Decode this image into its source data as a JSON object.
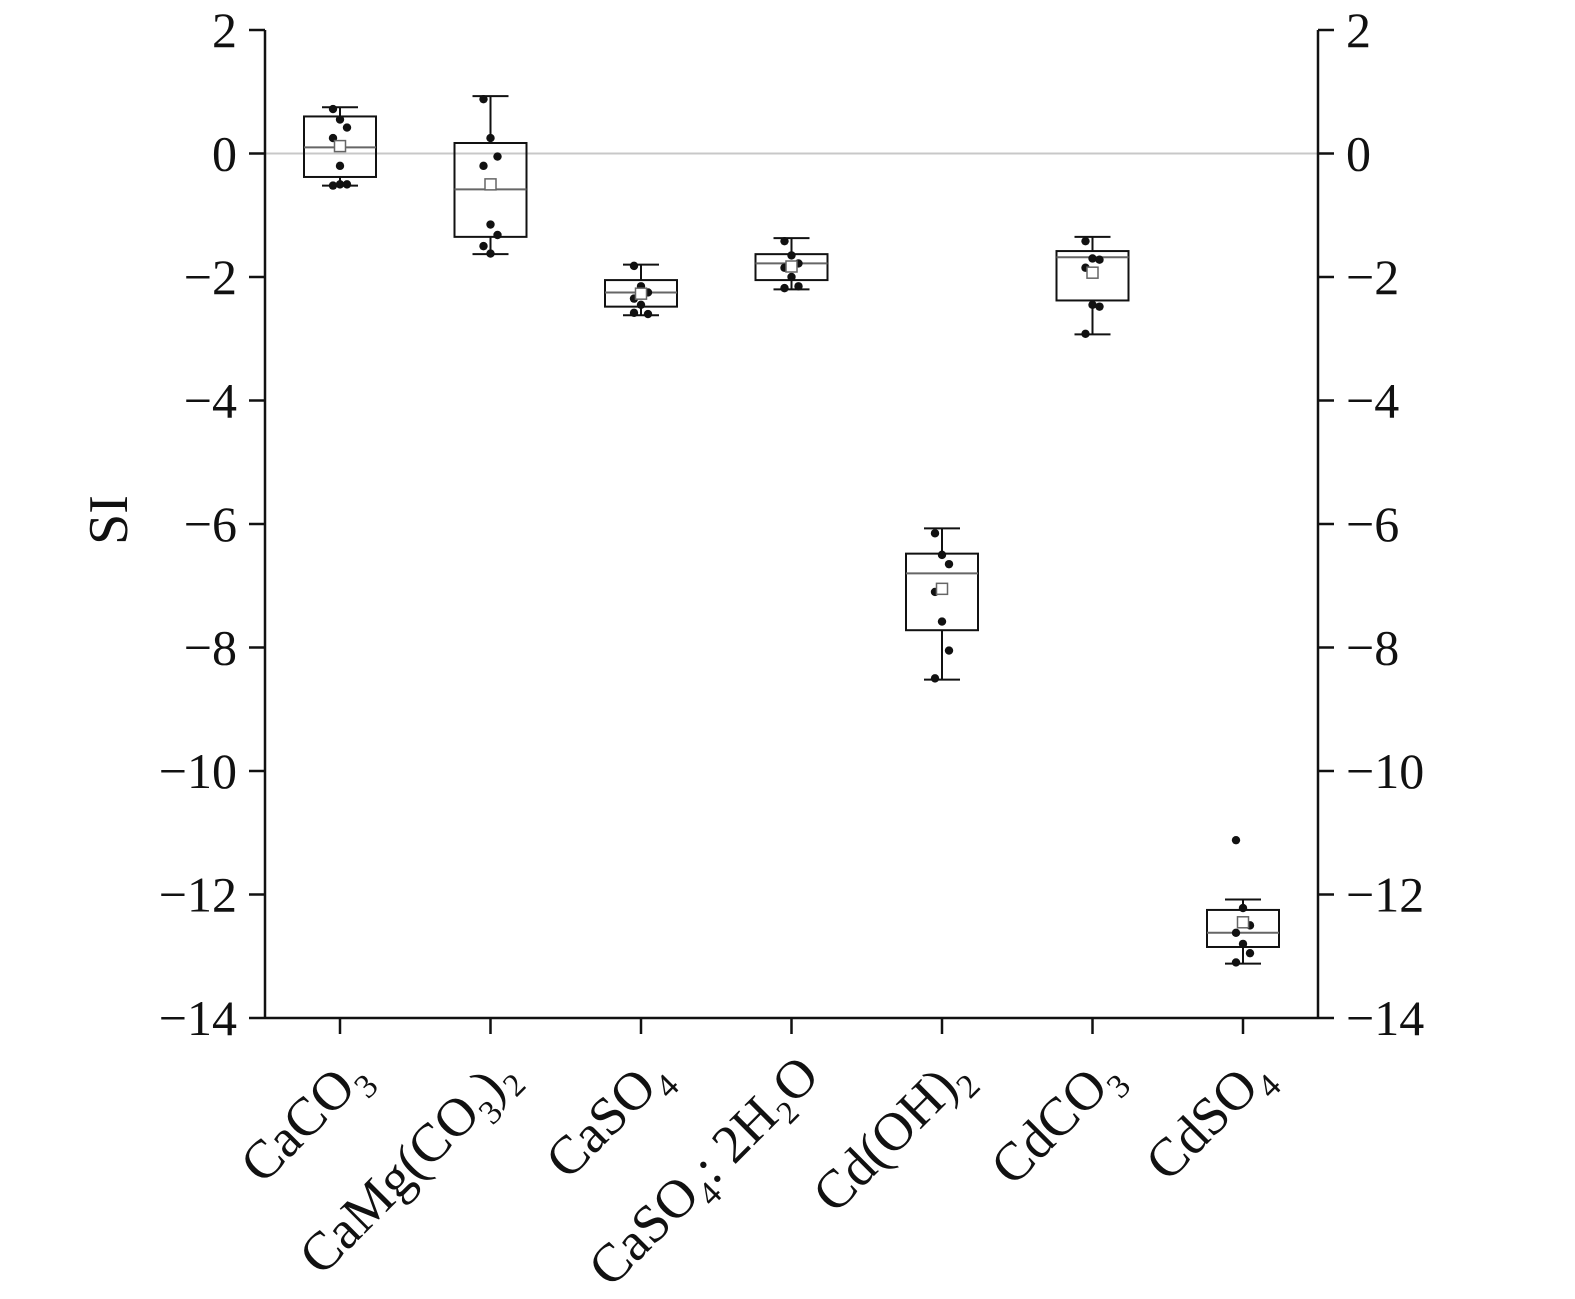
{
  "chart_data": {
    "type": "box",
    "title": "",
    "xlabel": "",
    "ylabel": "SI",
    "ylim": [
      -14,
      2
    ],
    "yticks": [
      2,
      0,
      -2,
      -4,
      -6,
      -8,
      -10,
      -12,
      -14
    ],
    "ytick_labels": [
      "2",
      "0",
      "−2",
      "−4",
      "−6",
      "−8",
      "−10",
      "−12",
      "−14"
    ],
    "reference_line": 0,
    "right_axis": true,
    "categories": [
      {
        "text": "CaCO",
        "sub": "3",
        "after": ""
      },
      {
        "text": "CaMg(CO",
        "sub": "3",
        "after": ")₂"
      },
      {
        "text": "CaSO",
        "sub": "4",
        "after": ""
      },
      {
        "text": "CaSO",
        "sub": "4",
        "after": ": 2H₂O"
      },
      {
        "text": "Cd(OH)",
        "sub": "2",
        "after": ""
      },
      {
        "text": "CdCO",
        "sub": "3",
        "after": ""
      },
      {
        "text": "CdSO",
        "sub": "4",
        "after": ""
      }
    ],
    "boxes": [
      {
        "q1": -0.38,
        "median": 0.1,
        "q3": 0.6,
        "whisker_low": -0.52,
        "whisker_high": 0.75,
        "mean": 0.12,
        "points": [
          0.72,
          0.55,
          0.42,
          0.25,
          -0.2,
          -0.5,
          -0.52,
          -0.5
        ]
      },
      {
        "q1": -1.35,
        "median": -0.58,
        "q3": 0.17,
        "whisker_low": -1.63,
        "whisker_high": 0.93,
        "mean": -0.5,
        "points": [
          0.88,
          0.25,
          -0.05,
          -0.2,
          -1.15,
          -1.32,
          -1.5,
          -1.62
        ]
      },
      {
        "q1": -2.48,
        "median": -2.25,
        "q3": -2.05,
        "whisker_low": -2.62,
        "whisker_high": -1.8,
        "mean": -2.27,
        "points": [
          -1.82,
          -2.15,
          -2.25,
          -2.35,
          -2.45,
          -2.6,
          -2.58
        ]
      },
      {
        "q1": -2.05,
        "median": -1.78,
        "q3": -1.63,
        "whisker_low": -2.2,
        "whisker_high": -1.37,
        "mean": -1.83,
        "points": [
          -1.42,
          -1.65,
          -1.78,
          -1.85,
          -2.0,
          -2.15,
          -2.18
        ]
      },
      {
        "q1": -7.72,
        "median": -6.8,
        "q3": -6.48,
        "whisker_low": -8.52,
        "whisker_high": -6.07,
        "mean": -7.05,
        "points": [
          -6.15,
          -6.5,
          -6.65,
          -7.1,
          -7.58,
          -8.05,
          -8.5
        ]
      },
      {
        "q1": -2.38,
        "median": -1.68,
        "q3": -1.58,
        "whisker_low": -2.93,
        "whisker_high": -1.35,
        "mean": -1.93,
        "points": [
          -1.42,
          -1.7,
          -1.72,
          -1.85,
          -2.45,
          -2.48,
          -2.92
        ]
      },
      {
        "q1": -12.85,
        "median": -12.62,
        "q3": -12.25,
        "whisker_low": -13.12,
        "whisker_high": -12.08,
        "mean": -12.45,
        "points": [
          -11.12,
          -12.22,
          -12.5,
          -12.62,
          -12.8,
          -12.95,
          -13.1
        ]
      }
    ]
  }
}
